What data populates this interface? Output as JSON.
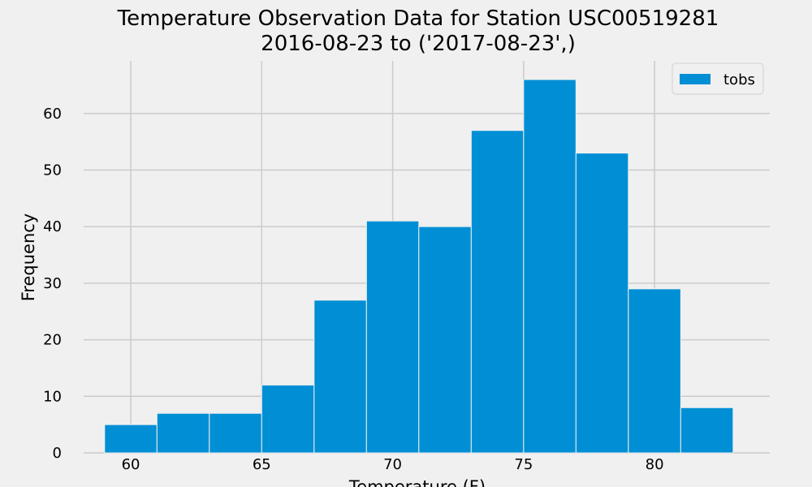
{
  "chart_data": {
    "type": "bar",
    "title": "Temperature Observation Data for Station USC00519281",
    "subtitle": "2016-08-23 to ('2017-08-23',)",
    "xlabel": "Temperature (F)",
    "ylabel": "Frequency",
    "xlim": [
      58.2,
      84.4
    ],
    "ylim": [
      0,
      69.3
    ],
    "x_ticks": [
      60,
      65,
      70,
      75,
      80
    ],
    "y_ticks": [
      0,
      10,
      20,
      30,
      40,
      50,
      60
    ],
    "grid": true,
    "legend_position": "top-right",
    "series": [
      {
        "name": "tobs",
        "color": "#008fd5",
        "bins": [
          {
            "start": 59,
            "end": 61,
            "value": 5
          },
          {
            "start": 61,
            "end": 63,
            "value": 7
          },
          {
            "start": 63,
            "end": 65,
            "value": 7
          },
          {
            "start": 65,
            "end": 67,
            "value": 12
          },
          {
            "start": 67,
            "end": 69,
            "value": 27
          },
          {
            "start": 69,
            "end": 71,
            "value": 41
          },
          {
            "start": 71,
            "end": 73,
            "value": 40
          },
          {
            "start": 73,
            "end": 75,
            "value": 57
          },
          {
            "start": 75,
            "end": 77,
            "value": 66
          },
          {
            "start": 77,
            "end": 79,
            "value": 53
          },
          {
            "start": 79,
            "end": 81,
            "value": 29
          },
          {
            "start": 81,
            "end": 83,
            "value": 8
          }
        ]
      }
    ]
  }
}
